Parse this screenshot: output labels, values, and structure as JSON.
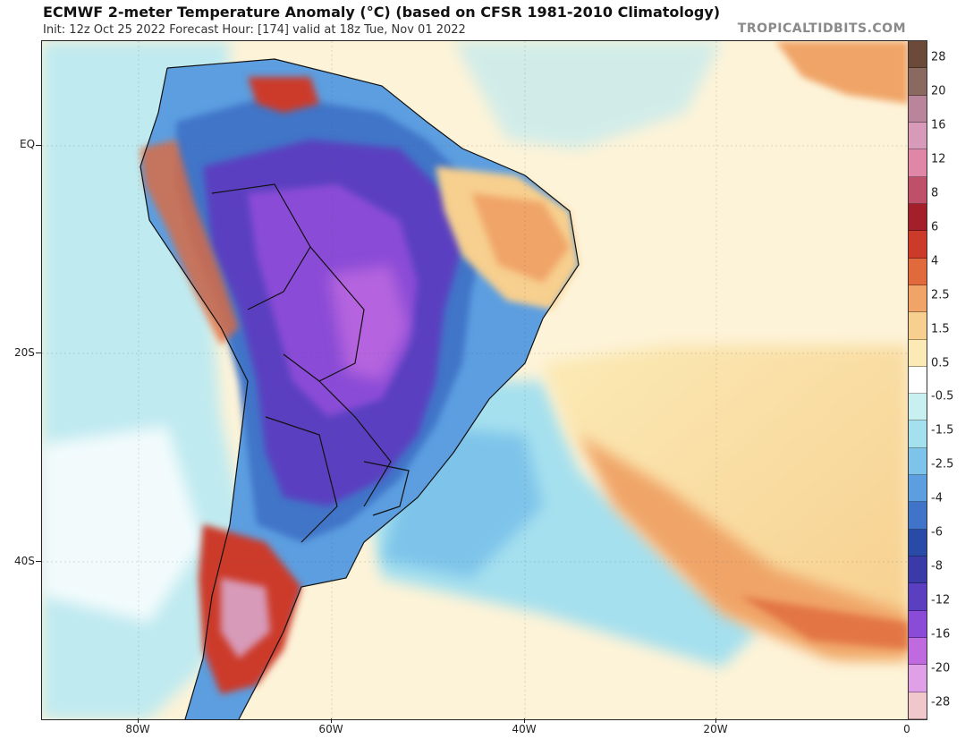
{
  "header": {
    "title": "ECMWF 2-meter Temperature Anomaly (°C) (based on CFSR 1981-2010 Climatology)",
    "subtitle": "Init: 12z Oct 25 2022   Forecast Hour: [174]   valid at 18z Tue, Nov 01 2022",
    "brand": "TROPICALTIDBITS.COM"
  },
  "map": {
    "lat_labels": [
      "EQ",
      "20S",
      "40S"
    ],
    "lon_labels": [
      "80W",
      "60W",
      "40W",
      "20W",
      "0"
    ]
  },
  "legend": {
    "labels": [
      "28",
      "20",
      "16",
      "12",
      "8",
      "6",
      "4",
      "2.5",
      "1.5",
      "0.5",
      "-0.5",
      "-1.5",
      "-2.5",
      "-4",
      "-6",
      "-8",
      "-12",
      "-16",
      "-20",
      "-28"
    ],
    "colors": [
      "#6b4a3a",
      "#8a6a60",
      "#b8859a",
      "#d79ab8",
      "#e086a6",
      "#c0506a",
      "#a3202a",
      "#cc3a2a",
      "#e06a3c",
      "#f0a468",
      "#f7cf8e",
      "#fbeab6",
      "#ffffff",
      "#c9f0f0",
      "#a5e0ee",
      "#7ec4ea",
      "#5c9ee0",
      "#3f74c8",
      "#2a4aa8",
      "#3a3aa8",
      "#5a3fc0",
      "#8a4bd6",
      "#c06ae0",
      "#e0a0e8",
      "#f0c8cc"
    ]
  }
}
